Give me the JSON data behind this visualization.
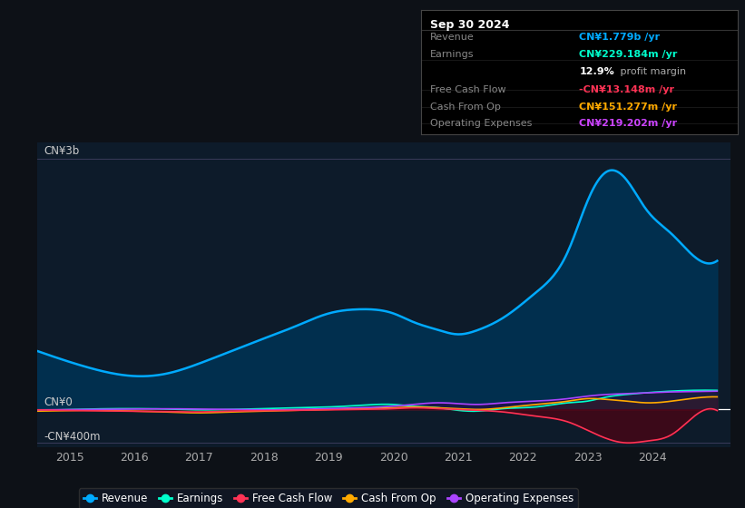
{
  "bg_color": "#0d1117",
  "chart_bg": "#0d1b2a",
  "y_label_top": "CN¥3b",
  "y_label_zero": "CN¥0",
  "y_label_neg": "-CN¥400m",
  "x_ticks": [
    2015,
    2016,
    2017,
    2018,
    2019,
    2020,
    2021,
    2022,
    2023,
    2024
  ],
  "revenue_color": "#00aaff",
  "earnings_color": "#00ffcc",
  "fcf_color": "#ff3355",
  "cashfromop_color": "#ffaa00",
  "opex_color": "#aa44ff",
  "legend_items": [
    {
      "label": "Revenue",
      "color": "#00aaff"
    },
    {
      "label": "Earnings",
      "color": "#00ffcc"
    },
    {
      "label": "Free Cash Flow",
      "color": "#ff3355"
    },
    {
      "label": "Cash From Op",
      "color": "#ffaa00"
    },
    {
      "label": "Operating Expenses",
      "color": "#aa44ff"
    }
  ],
  "info_box": {
    "date": "Sep 30 2024",
    "rows": [
      {
        "label": "Revenue",
        "value": "CN¥1.779b /yr",
        "color": "#00aaff"
      },
      {
        "label": "Earnings",
        "value": "CN¥229.184m /yr",
        "color": "#00ffcc"
      },
      {
        "label": "",
        "value": "12.9% profit margin",
        "color": "#ffffff",
        "bold_prefix": "12.9%"
      },
      {
        "label": "Free Cash Flow",
        "value": "-CN¥13.148m /yr",
        "color": "#ff3355"
      },
      {
        "label": "Cash From Op",
        "value": "CN¥151.277m /yr",
        "color": "#ffaa00"
      },
      {
        "label": "Operating Expenses",
        "value": "CN¥219.202m /yr",
        "color": "#cc44ff"
      }
    ]
  },
  "revenue_data": [
    700,
    620,
    500,
    400,
    430,
    550,
    700,
    850,
    1000,
    1150,
    1200,
    1150,
    1050,
    950,
    900,
    950,
    1100,
    1400,
    1900,
    2500,
    2850,
    2750,
    2400,
    2100,
    1800,
    1780
  ],
  "revenue_x": [
    2014.5,
    2014.8,
    2015.3,
    2016.0,
    2016.5,
    2017.0,
    2017.5,
    2018.0,
    2018.5,
    2019.0,
    2019.5,
    2020.0,
    2020.3,
    2020.7,
    2021.0,
    2021.3,
    2021.7,
    2022.2,
    2022.7,
    2023.0,
    2023.3,
    2023.6,
    2023.9,
    2024.3,
    2024.7,
    2025.0
  ],
  "earn_data": [
    -10,
    -5,
    5,
    10,
    5,
    -5,
    0,
    10,
    20,
    30,
    50,
    60,
    40,
    20,
    -10,
    -20,
    10,
    30,
    80,
    100,
    150,
    180,
    200,
    220,
    230,
    229
  ],
  "earn_x": [
    2014.5,
    2014.8,
    2015.3,
    2016.0,
    2016.5,
    2017.0,
    2017.5,
    2018.0,
    2018.5,
    2019.0,
    2019.5,
    2020.0,
    2020.3,
    2020.7,
    2021.0,
    2021.3,
    2021.7,
    2022.2,
    2022.7,
    2023.0,
    2023.3,
    2023.6,
    2023.9,
    2024.3,
    2024.7,
    2025.0
  ],
  "fcf_data": [
    -5,
    -10,
    -15,
    -20,
    -25,
    -30,
    -20,
    -15,
    -10,
    -5,
    0,
    10,
    20,
    10,
    0,
    -10,
    -30,
    -80,
    -150,
    -250,
    -350,
    -400,
    -380,
    -300,
    -50,
    -13
  ],
  "fcf_x": [
    2014.5,
    2014.8,
    2015.3,
    2016.0,
    2016.5,
    2017.0,
    2017.5,
    2018.0,
    2018.5,
    2019.0,
    2019.5,
    2020.0,
    2020.3,
    2020.7,
    2021.0,
    2021.3,
    2021.7,
    2022.2,
    2022.7,
    2023.0,
    2023.3,
    2023.6,
    2023.9,
    2024.3,
    2024.7,
    2025.0
  ],
  "cashop_data": [
    -20,
    -15,
    -10,
    -20,
    -30,
    -40,
    -30,
    -20,
    -10,
    0,
    10,
    20,
    30,
    20,
    10,
    0,
    20,
    60,
    100,
    130,
    120,
    100,
    80,
    100,
    140,
    151
  ],
  "cashop_x": [
    2014.5,
    2014.8,
    2015.3,
    2016.0,
    2016.5,
    2017.0,
    2017.5,
    2018.0,
    2018.5,
    2019.0,
    2019.5,
    2020.0,
    2020.3,
    2020.7,
    2021.0,
    2021.3,
    2021.7,
    2022.2,
    2022.7,
    2023.0,
    2023.3,
    2023.6,
    2023.9,
    2024.3,
    2024.7,
    2025.0
  ],
  "opex_data": [
    -5,
    -3,
    0,
    5,
    8,
    5,
    0,
    -5,
    0,
    10,
    20,
    40,
    60,
    80,
    70,
    60,
    80,
    100,
    130,
    160,
    180,
    190,
    200,
    210,
    215,
    219
  ],
  "opex_x": [
    2014.5,
    2014.8,
    2015.3,
    2016.0,
    2016.5,
    2017.0,
    2017.5,
    2018.0,
    2018.5,
    2019.0,
    2019.5,
    2020.0,
    2020.3,
    2020.7,
    2021.0,
    2021.3,
    2021.7,
    2022.2,
    2022.7,
    2023.0,
    2023.3,
    2023.6,
    2023.9,
    2024.3,
    2024.7,
    2025.0
  ]
}
